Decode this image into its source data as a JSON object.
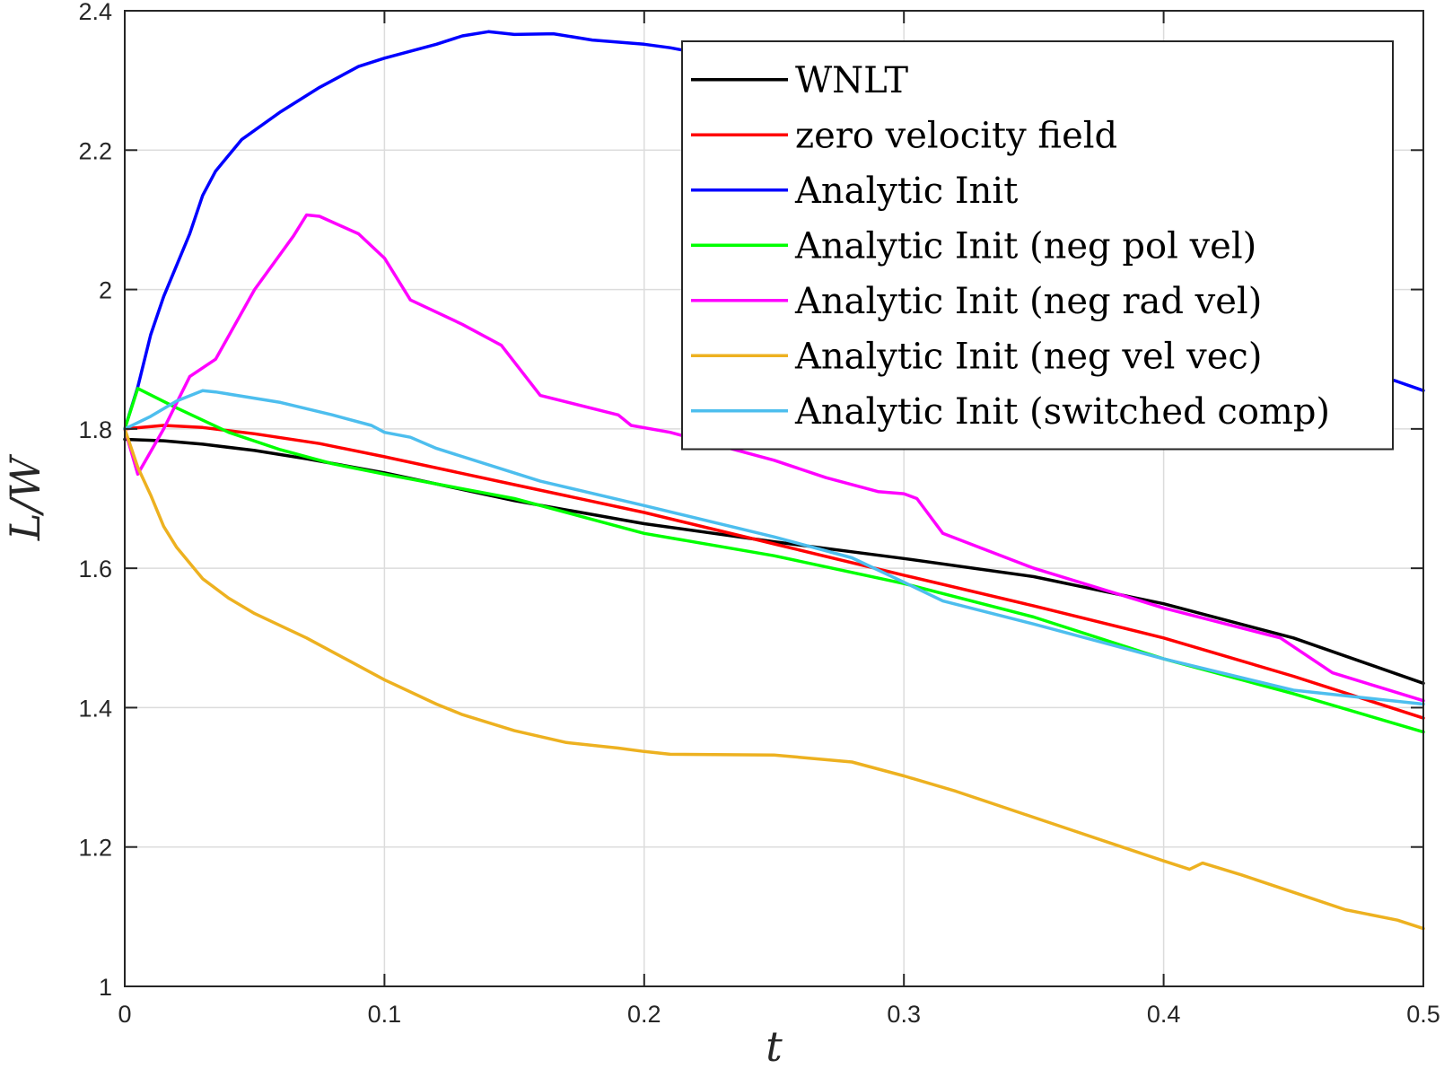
{
  "chart_data": {
    "type": "line",
    "xlabel": "t",
    "ylabel": "L/W",
    "xlim": [
      0,
      0.5
    ],
    "ylim": [
      1,
      2.4
    ],
    "grid": true,
    "legend_position": "top-right",
    "x_ticks": [
      {
        "value": 0,
        "label": "0"
      },
      {
        "value": 0.1,
        "label": "0.1"
      },
      {
        "value": 0.2,
        "label": "0.2"
      },
      {
        "value": 0.3,
        "label": "0.3"
      },
      {
        "value": 0.4,
        "label": "0.4"
      },
      {
        "value": 0.5,
        "label": "0.5"
      }
    ],
    "y_ticks": [
      {
        "value": 1,
        "label": "1"
      },
      {
        "value": 1.2,
        "label": "1.2"
      },
      {
        "value": 1.4,
        "label": "1.4"
      },
      {
        "value": 1.6,
        "label": "1.6"
      },
      {
        "value": 1.8,
        "label": "1.8"
      },
      {
        "value": 2,
        "label": "2"
      },
      {
        "value": 2.2,
        "label": "2.2"
      },
      {
        "value": 2.4,
        "label": "2.4"
      }
    ],
    "series": [
      {
        "name": "WNLT",
        "color": "#000000",
        "points": [
          [
            0,
            1.785
          ],
          [
            0.015,
            1.783
          ],
          [
            0.03,
            1.778
          ],
          [
            0.05,
            1.769
          ],
          [
            0.07,
            1.757
          ],
          [
            0.1,
            1.737
          ],
          [
            0.13,
            1.713
          ],
          [
            0.15,
            1.697
          ],
          [
            0.2,
            1.664
          ],
          [
            0.25,
            1.638
          ],
          [
            0.3,
            1.614
          ],
          [
            0.35,
            1.588
          ],
          [
            0.4,
            1.549
          ],
          [
            0.45,
            1.5
          ],
          [
            0.5,
            1.435
          ]
        ]
      },
      {
        "name": "zero velocity field",
        "color": "#ff0000",
        "points": [
          [
            0,
            1.8
          ],
          [
            0.015,
            1.805
          ],
          [
            0.03,
            1.802
          ],
          [
            0.05,
            1.793
          ],
          [
            0.075,
            1.779
          ],
          [
            0.1,
            1.76
          ],
          [
            0.15,
            1.72
          ],
          [
            0.2,
            1.68
          ],
          [
            0.25,
            1.635
          ],
          [
            0.3,
            1.59
          ],
          [
            0.35,
            1.546
          ],
          [
            0.4,
            1.5
          ],
          [
            0.45,
            1.445
          ],
          [
            0.5,
            1.385
          ]
        ]
      },
      {
        "name": "Analytic Init",
        "color": "#0000ff",
        "points": [
          [
            0,
            1.8
          ],
          [
            0.005,
            1.86
          ],
          [
            0.01,
            1.935
          ],
          [
            0.015,
            1.99
          ],
          [
            0.02,
            2.035
          ],
          [
            0.025,
            2.08
          ],
          [
            0.03,
            2.135
          ],
          [
            0.035,
            2.17
          ],
          [
            0.045,
            2.215
          ],
          [
            0.06,
            2.255
          ],
          [
            0.075,
            2.29
          ],
          [
            0.09,
            2.32
          ],
          [
            0.1,
            2.332
          ],
          [
            0.12,
            2.352
          ],
          [
            0.13,
            2.364
          ],
          [
            0.14,
            2.37
          ],
          [
            0.15,
            2.366
          ],
          [
            0.165,
            2.367
          ],
          [
            0.18,
            2.358
          ],
          [
            0.2,
            2.352
          ],
          [
            0.21,
            2.347
          ],
          [
            0.22,
            2.34
          ],
          [
            0.48,
            1.88
          ],
          [
            0.49,
            1.868
          ],
          [
            0.5,
            1.855
          ]
        ]
      },
      {
        "name": "Analytic Init (neg pol vel)",
        "color": "#00ff00",
        "points": [
          [
            0,
            1.8
          ],
          [
            0.005,
            1.858
          ],
          [
            0.02,
            1.83
          ],
          [
            0.04,
            1.795
          ],
          [
            0.06,
            1.77
          ],
          [
            0.08,
            1.75
          ],
          [
            0.1,
            1.735
          ],
          [
            0.15,
            1.7
          ],
          [
            0.2,
            1.65
          ],
          [
            0.25,
            1.618
          ],
          [
            0.3,
            1.578
          ],
          [
            0.35,
            1.53
          ],
          [
            0.4,
            1.47
          ],
          [
            0.45,
            1.42
          ],
          [
            0.5,
            1.365
          ]
        ]
      },
      {
        "name": "Analytic Init (neg rad vel)",
        "color": "#ff00ff",
        "points": [
          [
            0,
            1.8
          ],
          [
            0.005,
            1.735
          ],
          [
            0.015,
            1.8
          ],
          [
            0.025,
            1.875
          ],
          [
            0.035,
            1.9
          ],
          [
            0.05,
            2
          ],
          [
            0.065,
            2.077
          ],
          [
            0.07,
            2.107
          ],
          [
            0.075,
            2.105
          ],
          [
            0.09,
            2.08
          ],
          [
            0.1,
            2.045
          ],
          [
            0.11,
            1.985
          ],
          [
            0.13,
            1.95
          ],
          [
            0.145,
            1.92
          ],
          [
            0.16,
            1.848
          ],
          [
            0.19,
            1.82
          ],
          [
            0.195,
            1.805
          ],
          [
            0.21,
            1.795
          ],
          [
            0.25,
            1.755
          ],
          [
            0.27,
            1.73
          ],
          [
            0.29,
            1.71
          ],
          [
            0.3,
            1.707
          ],
          [
            0.305,
            1.7
          ],
          [
            0.315,
            1.65
          ],
          [
            0.35,
            1.6
          ],
          [
            0.4,
            1.543
          ],
          [
            0.445,
            1.5
          ],
          [
            0.465,
            1.45
          ],
          [
            0.5,
            1.41
          ]
        ]
      },
      {
        "name": "Analytic Init (neg vel vec)",
        "color": "#edb120",
        "points": [
          [
            0,
            1.8
          ],
          [
            0.005,
            1.745
          ],
          [
            0.01,
            1.705
          ],
          [
            0.015,
            1.66
          ],
          [
            0.02,
            1.63
          ],
          [
            0.03,
            1.585
          ],
          [
            0.04,
            1.557
          ],
          [
            0.05,
            1.535
          ],
          [
            0.07,
            1.5
          ],
          [
            0.085,
            1.47
          ],
          [
            0.1,
            1.44
          ],
          [
            0.12,
            1.405
          ],
          [
            0.13,
            1.39
          ],
          [
            0.15,
            1.367
          ],
          [
            0.17,
            1.35
          ],
          [
            0.19,
            1.342
          ],
          [
            0.2,
            1.337
          ],
          [
            0.21,
            1.333
          ],
          [
            0.25,
            1.332
          ],
          [
            0.28,
            1.322
          ],
          [
            0.3,
            1.302
          ],
          [
            0.32,
            1.28
          ],
          [
            0.34,
            1.255
          ],
          [
            0.36,
            1.23
          ],
          [
            0.38,
            1.205
          ],
          [
            0.4,
            1.18
          ],
          [
            0.41,
            1.168
          ],
          [
            0.415,
            1.177
          ],
          [
            0.43,
            1.16
          ],
          [
            0.45,
            1.135
          ],
          [
            0.47,
            1.11
          ],
          [
            0.49,
            1.095
          ],
          [
            0.5,
            1.083
          ]
        ]
      },
      {
        "name": "Analytic Init (switched comp)",
        "color": "#4dbeee",
        "points": [
          [
            0,
            1.8
          ],
          [
            0.01,
            1.818
          ],
          [
            0.02,
            1.84
          ],
          [
            0.03,
            1.855
          ],
          [
            0.035,
            1.853
          ],
          [
            0.06,
            1.838
          ],
          [
            0.08,
            1.82
          ],
          [
            0.095,
            1.805
          ],
          [
            0.1,
            1.795
          ],
          [
            0.11,
            1.788
          ],
          [
            0.12,
            1.772
          ],
          [
            0.16,
            1.725
          ],
          [
            0.2,
            1.69
          ],
          [
            0.25,
            1.645
          ],
          [
            0.28,
            1.615
          ],
          [
            0.3,
            1.58
          ],
          [
            0.315,
            1.553
          ],
          [
            0.35,
            1.52
          ],
          [
            0.4,
            1.47
          ],
          [
            0.45,
            1.425
          ],
          [
            0.5,
            1.405
          ]
        ]
      }
    ]
  }
}
